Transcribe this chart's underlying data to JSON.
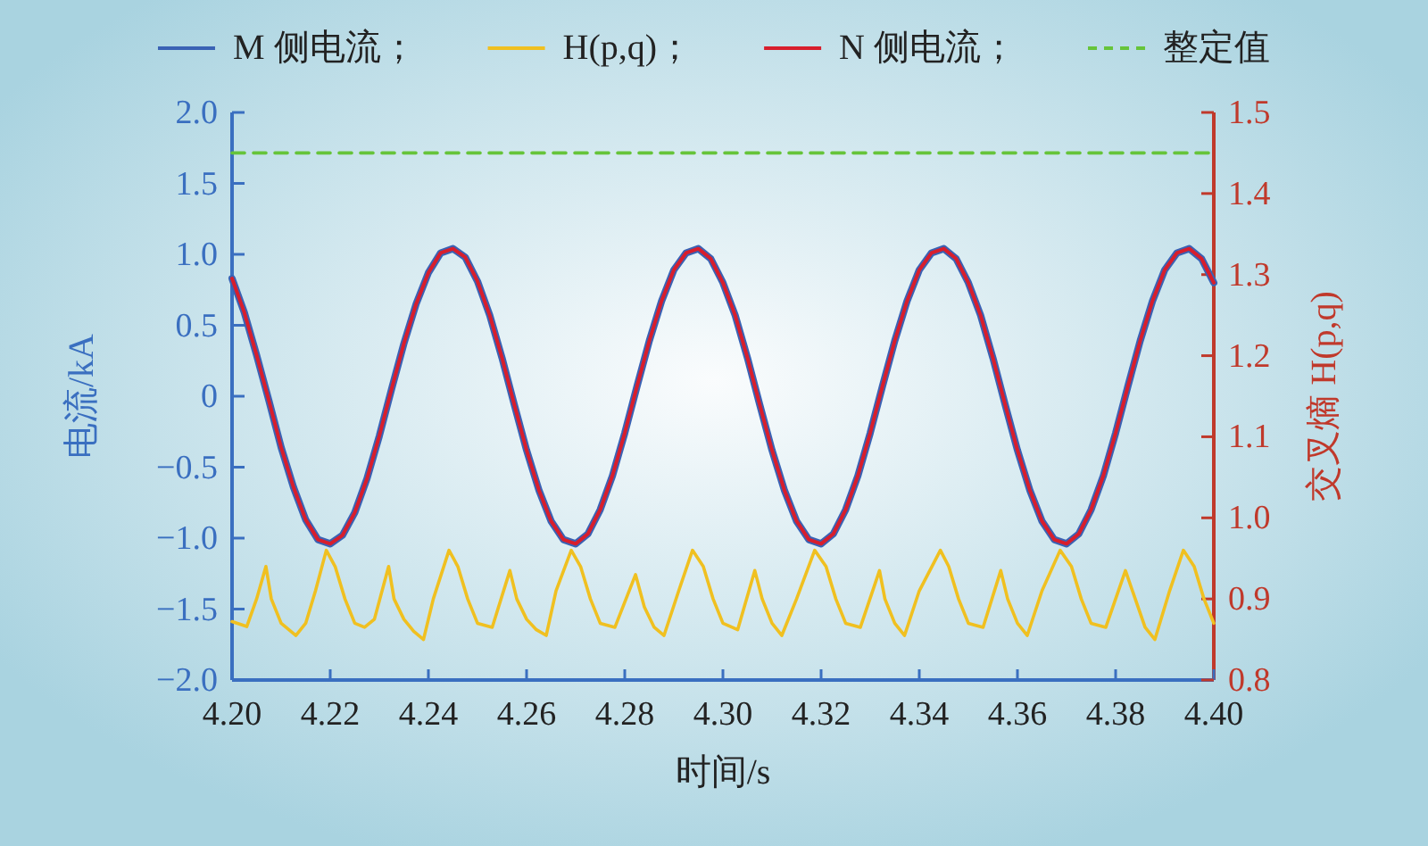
{
  "chart_data": {
    "type": "line",
    "xlabel": "时间/s",
    "ylabel": "电流/kA",
    "y2label": "交叉熵 H(p,q)",
    "xlim": [
      4.2,
      4.4
    ],
    "xticks": [
      {
        "value": 4.2,
        "label": "4.20"
      },
      {
        "value": 4.22,
        "label": "4.22"
      },
      {
        "value": 4.24,
        "label": "4.24"
      },
      {
        "value": 4.26,
        "label": "4.26"
      },
      {
        "value": 4.28,
        "label": "4.28"
      },
      {
        "value": 4.3,
        "label": "4.30"
      },
      {
        "value": 4.32,
        "label": "4.32"
      },
      {
        "value": 4.34,
        "label": "4.34"
      },
      {
        "value": 4.36,
        "label": "4.36"
      },
      {
        "value": 4.38,
        "label": "4.38"
      },
      {
        "value": 4.4,
        "label": "4.40"
      }
    ],
    "ylim": [
      -2,
      2
    ],
    "yticks": [
      {
        "value": -2,
        "label": "−2.0"
      },
      {
        "value": -1.5,
        "label": "−1.5"
      },
      {
        "value": -1,
        "label": "−1.0"
      },
      {
        "value": -0.5,
        "label": "−0.5"
      },
      0,
      0.5,
      {
        "value": 1,
        "label": "1.0"
      },
      1.5,
      {
        "value": 2,
        "label": "2.0"
      }
    ],
    "y2lim": [
      0.8,
      1.5
    ],
    "y2ticks": [
      0.8,
      0.9,
      {
        "value": 1,
        "label": "1.0"
      },
      1.1,
      1.2,
      1.3,
      1.4,
      1.5
    ],
    "legend": "top",
    "grid": false,
    "series": [
      {
        "name": "M 侧电流；",
        "color": "#3a62b4",
        "x": [
          4.2,
          4.2025,
          4.205,
          4.2075,
          4.21,
          4.2125,
          4.215,
          4.2175,
          4.22,
          4.2225,
          4.225,
          4.2275,
          4.23,
          4.2325,
          4.235,
          4.2375,
          4.24,
          4.2425,
          4.245,
          4.2475,
          4.25,
          4.2525,
          4.255,
          4.2575,
          4.26,
          4.2625,
          4.265,
          4.2675,
          4.27,
          4.2725,
          4.275,
          4.2775,
          4.28,
          4.2825,
          4.285,
          4.2875,
          4.29,
          4.2925,
          4.295,
          4.2975,
          4.3,
          4.3025,
          4.305,
          4.3075,
          4.31,
          4.3125,
          4.315,
          4.3175,
          4.32,
          4.3225,
          4.325,
          4.3275,
          4.33,
          4.3325,
          4.335,
          4.3375,
          4.34,
          4.3425,
          4.345,
          4.3475,
          4.35,
          4.3525,
          4.355,
          4.3575,
          4.36,
          4.3625,
          4.365,
          4.3675,
          4.37,
          4.3725,
          4.375,
          4.3775,
          4.38,
          4.3825,
          4.385,
          4.3875,
          4.39,
          4.3925,
          4.395,
          4.3975,
          4.4
        ],
        "values": [
          0.83,
          0.59,
          0.29,
          -0.03,
          -0.36,
          -0.64,
          -0.87,
          -1.01,
          -1.04,
          -0.98,
          -0.82,
          -0.58,
          -0.28,
          0.05,
          0.37,
          0.65,
          0.87,
          1.01,
          1.04,
          0.98,
          0.81,
          0.57,
          0.27,
          -0.06,
          -0.38,
          -0.66,
          -0.88,
          -1.01,
          -1.04,
          -0.97,
          -0.8,
          -0.56,
          -0.26,
          0.07,
          0.39,
          0.67,
          0.89,
          1.01,
          1.04,
          0.97,
          0.8,
          0.57,
          0.27,
          -0.06,
          -0.38,
          -0.66,
          -0.88,
          -1.01,
          -1.04,
          -0.97,
          -0.8,
          -0.56,
          -0.26,
          0.07,
          0.39,
          0.67,
          0.89,
          1.01,
          1.04,
          0.97,
          0.8,
          0.57,
          0.27,
          -0.06,
          -0.38,
          -0.66,
          -0.88,
          -1.01,
          -1.04,
          -0.97,
          -0.8,
          -0.56,
          -0.26,
          0.07,
          0.39,
          0.67,
          0.89,
          1.01,
          1.04,
          0.97,
          0.8
        ]
      },
      {
        "name": "H(p,q)；",
        "color": "#f0c020",
        "axis": "y2",
        "x": [
          4.2,
          4.203,
          4.205,
          4.2069,
          4.208,
          4.21,
          4.213,
          4.215,
          4.217,
          4.2192,
          4.221,
          4.223,
          4.225,
          4.227,
          4.229,
          4.2319,
          4.233,
          4.235,
          4.237,
          4.239,
          4.241,
          4.2442,
          4.246,
          4.248,
          4.25,
          4.253,
          4.2566,
          4.258,
          4.26,
          4.262,
          4.264,
          4.266,
          4.2691,
          4.271,
          4.273,
          4.275,
          4.278,
          4.2822,
          4.284,
          4.286,
          4.288,
          4.291,
          4.2938,
          4.296,
          4.298,
          4.3,
          4.303,
          4.3065,
          4.308,
          4.31,
          4.312,
          4.315,
          4.3187,
          4.321,
          4.323,
          4.325,
          4.328,
          4.3319,
          4.333,
          4.335,
          4.337,
          4.34,
          4.3443,
          4.346,
          4.348,
          4.35,
          4.353,
          4.3566,
          4.358,
          4.36,
          4.362,
          4.365,
          4.3687,
          4.371,
          4.373,
          4.375,
          4.378,
          4.382,
          4.384,
          4.386,
          4.388,
          4.391,
          4.3938,
          4.396,
          4.398,
          4.4
        ],
        "values": [
          0.872,
          0.866,
          0.9,
          0.94,
          0.9,
          0.87,
          0.855,
          0.87,
          0.91,
          0.96,
          0.94,
          0.9,
          0.87,
          0.865,
          0.875,
          0.94,
          0.9,
          0.875,
          0.86,
          0.85,
          0.9,
          0.96,
          0.94,
          0.9,
          0.87,
          0.865,
          0.935,
          0.9,
          0.875,
          0.862,
          0.855,
          0.91,
          0.96,
          0.94,
          0.9,
          0.87,
          0.865,
          0.93,
          0.89,
          0.865,
          0.855,
          0.91,
          0.96,
          0.94,
          0.9,
          0.87,
          0.862,
          0.935,
          0.9,
          0.87,
          0.855,
          0.9,
          0.96,
          0.94,
          0.9,
          0.87,
          0.865,
          0.935,
          0.9,
          0.87,
          0.855,
          0.91,
          0.96,
          0.94,
          0.9,
          0.87,
          0.865,
          0.935,
          0.9,
          0.87,
          0.855,
          0.91,
          0.96,
          0.94,
          0.9,
          0.87,
          0.865,
          0.935,
          0.9,
          0.865,
          0.85,
          0.91,
          0.96,
          0.94,
          0.9,
          0.87
        ]
      },
      {
        "name": "N 侧电流；",
        "color": "#d81e2c",
        "x": [
          4.2,
          4.2025,
          4.205,
          4.2075,
          4.21,
          4.2125,
          4.215,
          4.2175,
          4.22,
          4.2225,
          4.225,
          4.2275,
          4.23,
          4.2325,
          4.235,
          4.2375,
          4.24,
          4.2425,
          4.245,
          4.2475,
          4.25,
          4.2525,
          4.255,
          4.2575,
          4.26,
          4.2625,
          4.265,
          4.2675,
          4.27,
          4.2725,
          4.275,
          4.2775,
          4.28,
          4.2825,
          4.285,
          4.2875,
          4.29,
          4.2925,
          4.295,
          4.2975,
          4.3,
          4.3025,
          4.305,
          4.3075,
          4.31,
          4.3125,
          4.315,
          4.3175,
          4.32,
          4.3225,
          4.325,
          4.3275,
          4.33,
          4.3325,
          4.335,
          4.3375,
          4.34,
          4.3425,
          4.345,
          4.3475,
          4.35,
          4.3525,
          4.355,
          4.3575,
          4.36,
          4.3625,
          4.365,
          4.3675,
          4.37,
          4.3725,
          4.375,
          4.3775,
          4.38,
          4.3825,
          4.385,
          4.3875,
          4.39,
          4.3925,
          4.395,
          4.3975,
          4.4
        ],
        "values": [
          0.83,
          0.59,
          0.29,
          -0.03,
          -0.36,
          -0.64,
          -0.87,
          -1.01,
          -1.04,
          -0.98,
          -0.82,
          -0.58,
          -0.28,
          0.05,
          0.37,
          0.65,
          0.87,
          1.01,
          1.04,
          0.98,
          0.81,
          0.57,
          0.27,
          -0.06,
          -0.38,
          -0.66,
          -0.88,
          -1.01,
          -1.04,
          -0.97,
          -0.8,
          -0.56,
          -0.26,
          0.07,
          0.39,
          0.67,
          0.89,
          1.01,
          1.04,
          0.97,
          0.8,
          0.57,
          0.27,
          -0.06,
          -0.38,
          -0.66,
          -0.88,
          -1.01,
          -1.04,
          -0.97,
          -0.8,
          -0.56,
          -0.26,
          0.07,
          0.39,
          0.67,
          0.89,
          1.01,
          1.04,
          0.97,
          0.8,
          0.57,
          0.27,
          -0.06,
          -0.38,
          -0.66,
          -0.88,
          -1.01,
          -1.04,
          -0.97,
          -0.8,
          -0.56,
          -0.26,
          0.07,
          0.39,
          0.67,
          0.89,
          1.01,
          1.04,
          0.97,
          0.8
        ]
      },
      {
        "name": "整定值",
        "color": "#66c43a",
        "axis": "y2",
        "line_style": "dashed",
        "x": [
          4.2,
          4.4
        ],
        "values": [
          1.45,
          1.45
        ]
      }
    ]
  }
}
